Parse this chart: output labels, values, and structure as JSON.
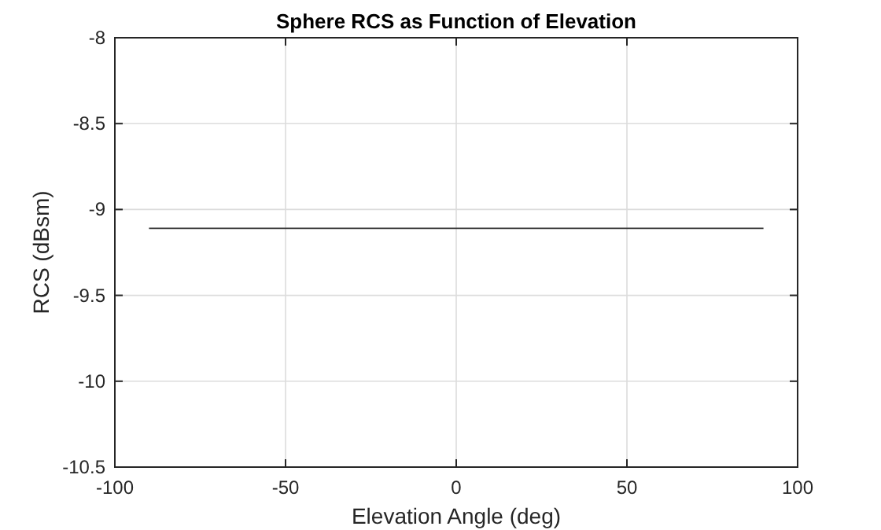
{
  "chart_data": {
    "type": "line",
    "title": "Sphere RCS as Function of Elevation",
    "xlabel": "Elevation Angle (deg)",
    "ylabel": "RCS (dBsm)",
    "x": [
      -90,
      90
    ],
    "series": [
      {
        "color": "#333333",
        "values": [
          -9.11,
          -9.11
        ]
      }
    ],
    "xlim": [
      -100,
      100
    ],
    "xticks": [
      -100,
      -50,
      0,
      50,
      100
    ],
    "ylim": [
      -10.5,
      -8
    ],
    "yticks": [
      -10.5,
      -10,
      -9.5,
      -9,
      -8.5,
      -8
    ],
    "grid": true,
    "marker": "none",
    "line_style": "solid"
  }
}
